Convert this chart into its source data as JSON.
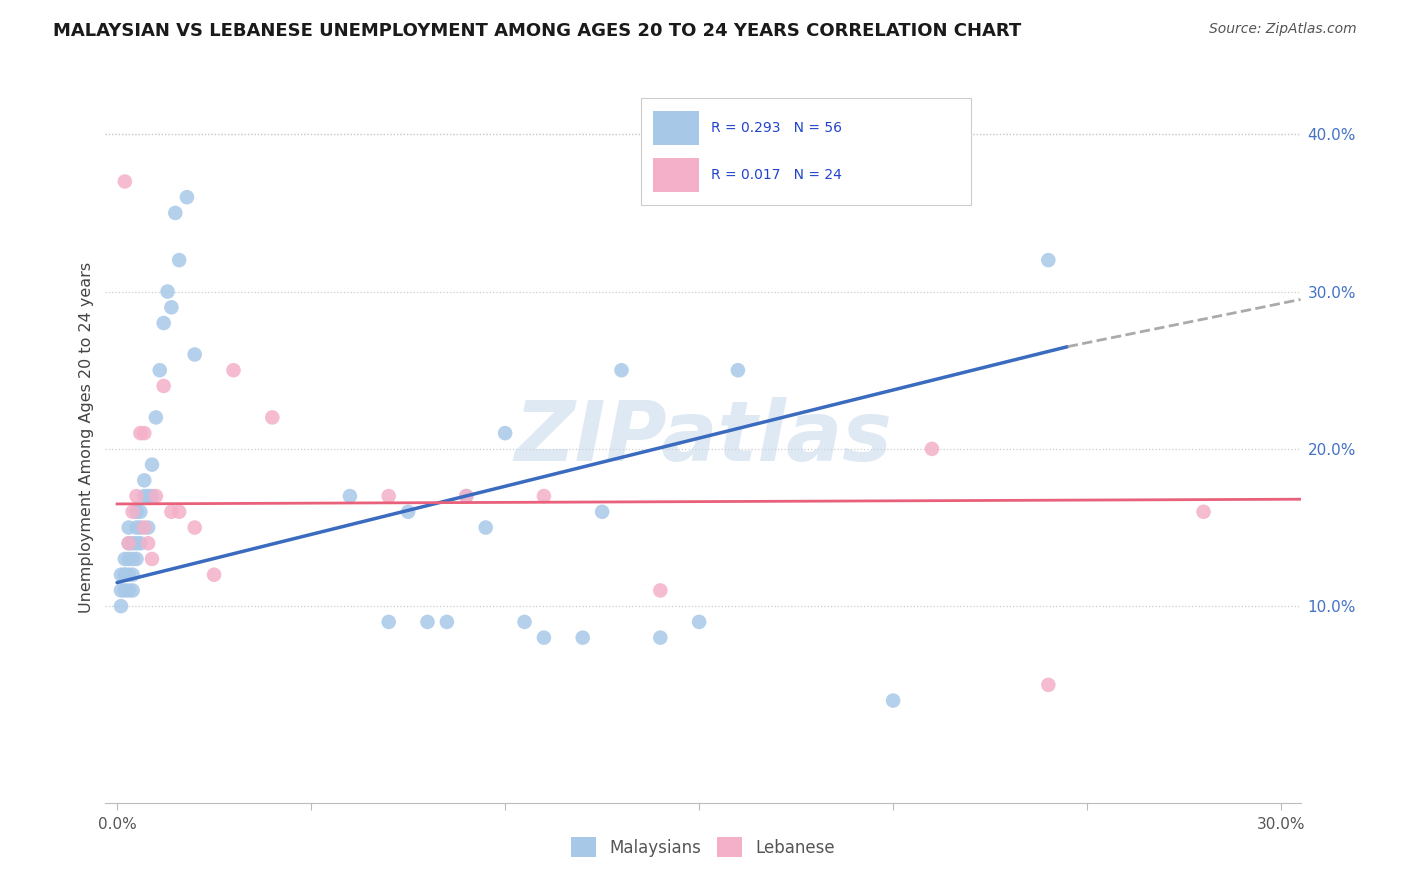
{
  "title": "MALAYSIAN VS LEBANESE UNEMPLOYMENT AMONG AGES 20 TO 24 YEARS CORRELATION CHART",
  "source": "Source: ZipAtlas.com",
  "ylabel": "Unemployment Among Ages 20 to 24 years",
  "ylabel_right_vals": [
    0.1,
    0.2,
    0.3,
    0.4
  ],
  "xlim": [
    -0.003,
    0.305
  ],
  "ylim": [
    -0.025,
    0.44
  ],
  "malaysian_color": "#a8c8e8",
  "lebanese_color": "#f4b0c8",
  "malaysian_line_color": "#3a6bbf",
  "lebanese_line_color": "#e8607a",
  "trend_ext_color": "#aaaaaa",
  "legend_r1": "R = 0.293",
  "legend_n1": "N = 56",
  "legend_r2": "R = 0.017",
  "legend_n2": "N = 24",
  "watermark": "ZIPatlas",
  "malaysian_x": [
    0.001,
    0.001,
    0.001,
    0.002,
    0.002,
    0.002,
    0.002,
    0.003,
    0.003,
    0.003,
    0.003,
    0.003,
    0.004,
    0.004,
    0.004,
    0.004,
    0.005,
    0.005,
    0.005,
    0.005,
    0.006,
    0.006,
    0.006,
    0.007,
    0.007,
    0.008,
    0.008,
    0.009,
    0.009,
    0.01,
    0.011,
    0.012,
    0.013,
    0.014,
    0.015,
    0.016,
    0.018,
    0.02,
    0.06,
    0.07,
    0.075,
    0.08,
    0.085,
    0.09,
    0.095,
    0.1,
    0.105,
    0.11,
    0.12,
    0.125,
    0.13,
    0.14,
    0.15,
    0.16,
    0.2,
    0.24
  ],
  "malaysian_y": [
    0.11,
    0.12,
    0.1,
    0.11,
    0.12,
    0.12,
    0.13,
    0.11,
    0.12,
    0.13,
    0.14,
    0.15,
    0.11,
    0.12,
    0.13,
    0.14,
    0.13,
    0.14,
    0.15,
    0.16,
    0.14,
    0.15,
    0.16,
    0.17,
    0.18,
    0.15,
    0.17,
    0.17,
    0.19,
    0.22,
    0.25,
    0.28,
    0.3,
    0.29,
    0.35,
    0.32,
    0.36,
    0.26,
    0.17,
    0.09,
    0.16,
    0.09,
    0.09,
    0.17,
    0.15,
    0.21,
    0.09,
    0.08,
    0.08,
    0.16,
    0.25,
    0.08,
    0.09,
    0.25,
    0.04,
    0.32
  ],
  "lebanese_x": [
    0.002,
    0.003,
    0.004,
    0.005,
    0.006,
    0.007,
    0.007,
    0.008,
    0.009,
    0.01,
    0.012,
    0.014,
    0.016,
    0.02,
    0.025,
    0.03,
    0.04,
    0.07,
    0.09,
    0.11,
    0.14,
    0.21,
    0.24,
    0.28
  ],
  "lebanese_y": [
    0.37,
    0.14,
    0.16,
    0.17,
    0.21,
    0.15,
    0.21,
    0.14,
    0.13,
    0.17,
    0.24,
    0.16,
    0.16,
    0.15,
    0.12,
    0.25,
    0.22,
    0.17,
    0.17,
    0.17,
    0.11,
    0.2,
    0.05,
    0.16
  ],
  "malaysian_trend_x0": 0.0,
  "malaysian_trend_y0": 0.115,
  "malaysian_trend_x1": 0.245,
  "malaysian_trend_y1": 0.265,
  "malaysian_trend_ext_x1": 0.305,
  "malaysian_trend_ext_y1": 0.295,
  "lebanese_trend_x0": 0.0,
  "lebanese_trend_y0": 0.165,
  "lebanese_trend_x1": 0.305,
  "lebanese_trend_y1": 0.168
}
